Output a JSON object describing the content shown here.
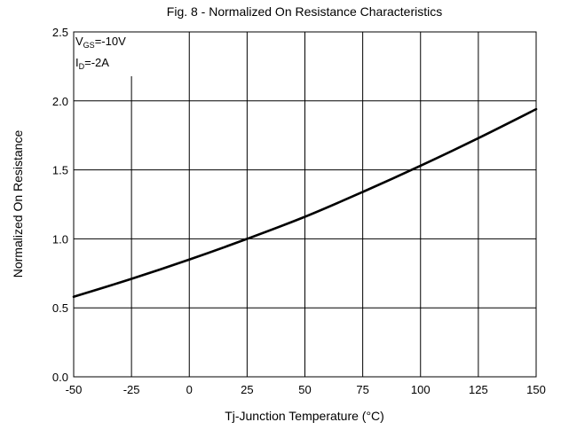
{
  "chart_data": {
    "type": "line",
    "title": "Fig. 8 - Normalized On Resistance Characteristics",
    "xlabel": "Tj-Junction Temperature  (°C)",
    "ylabel": "Normalized On Resistance",
    "xlim": [
      -50,
      150
    ],
    "ylim": [
      0.0,
      2.5
    ],
    "x_ticks": [
      "-50",
      "-25",
      "0",
      "25",
      "50",
      "75",
      "100",
      "125",
      "150"
    ],
    "y_ticks": [
      "0.0",
      "0.5",
      "1.0",
      "1.5",
      "2.0",
      "2.5"
    ],
    "grid": true,
    "annotations": {
      "vgs": {
        "main": "V",
        "sub": "GS",
        "rest": "=-10V"
      },
      "id": {
        "main": "I",
        "sub": "D",
        "rest": "=-2A"
      }
    },
    "series": [
      {
        "x": [
          -50,
          -25,
          0,
          25,
          50,
          75,
          100,
          125,
          150
        ],
        "values": [
          0.58,
          0.71,
          0.85,
          1.0,
          1.16,
          1.34,
          1.53,
          1.73,
          1.94
        ]
      }
    ]
  }
}
